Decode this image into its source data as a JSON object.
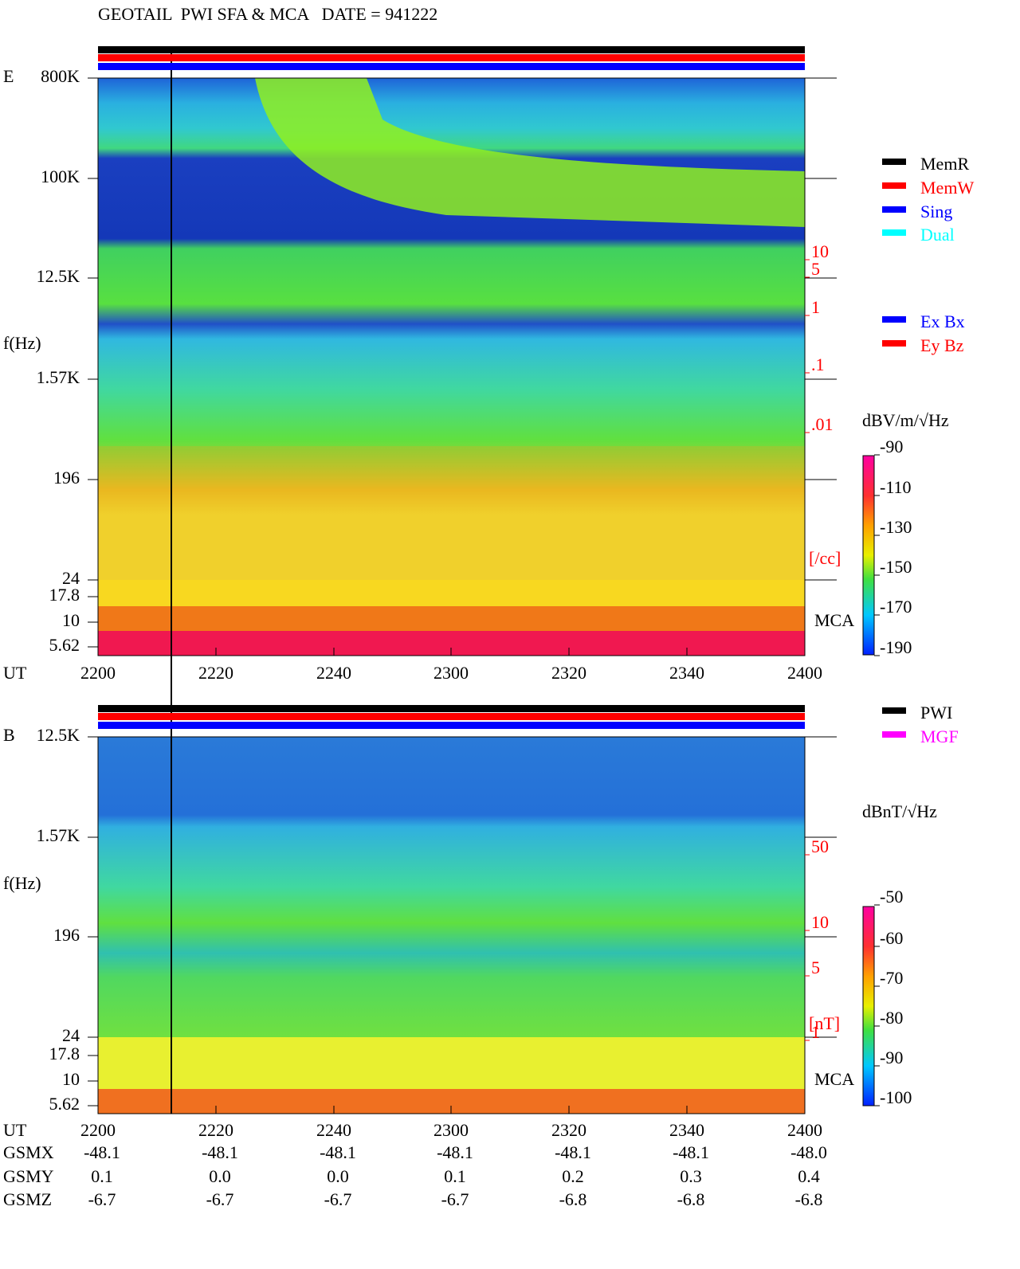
{
  "header": {
    "title": "GEOTAIL  PWI SFA & MCA   DATE = 941222"
  },
  "panels": [
    {
      "label": "E",
      "ylabel": "f(Hz)",
      "yticks": [
        "800K",
        "100K",
        "12.5K",
        "1.57K",
        "196",
        "24",
        "17.8",
        "10",
        "5.62"
      ],
      "right_ticks": [
        "10",
        "5",
        "1",
        ".1",
        ".01"
      ],
      "right_unit": "[/cc]",
      "mca": "MCA",
      "x_label": "UT",
      "xticks": [
        "2200",
        "2220",
        "2240",
        "2300",
        "2320",
        "2340",
        "2400"
      ],
      "legend": [
        {
          "name": "MemR",
          "color": "#000000"
        },
        {
          "name": "MemW",
          "color": "#ff0000"
        },
        {
          "name": "Sing",
          "color": "#0000ff"
        },
        {
          "name": "Dual",
          "color": "#00ffff"
        },
        {
          "name": "Ex Bx",
          "color": "#0000ff"
        },
        {
          "name": "Ey Bz",
          "color": "#ff0000"
        }
      ],
      "colorbar": {
        "title": "dBV/m/√Hz",
        "ticks": [
          "-90",
          "-110",
          "-130",
          "-150",
          "-170",
          "-190"
        ]
      }
    },
    {
      "label": "B",
      "ylabel": "f(Hz)",
      "yticks": [
        "12.5K",
        "1.57K",
        "196",
        "24",
        "17.8",
        "10",
        "5.62"
      ],
      "right_ticks": [
        "50",
        "10",
        "5",
        "1"
      ],
      "right_unit": "[nT]",
      "mca": "MCA",
      "x_label": "UT",
      "xticks": [
        "2200",
        "2220",
        "2240",
        "2300",
        "2320",
        "2340",
        "2400"
      ],
      "legend": [
        {
          "name": "PWI",
          "color": "#000000"
        },
        {
          "name": "MGF",
          "color": "#ff00ff"
        }
      ],
      "colorbar": {
        "title": "dBnT/√Hz",
        "ticks": [
          "-50",
          "-60",
          "-70",
          "-80",
          "-90",
          "-100"
        ]
      }
    }
  ],
  "orbit": {
    "rows": [
      {
        "label": "GSMX",
        "values": [
          "-48.1",
          "-48.1",
          "-48.1",
          "-48.1",
          "-48.1",
          "-48.1",
          "-48.0"
        ]
      },
      {
        "label": "GSMY",
        "values": [
          "0.1",
          "0.0",
          "0.0",
          "0.1",
          "0.2",
          "0.3",
          "0.4"
        ]
      },
      {
        "label": "GSMZ",
        "values": [
          "-6.7",
          "-6.7",
          "-6.7",
          "-6.7",
          "-6.8",
          "-6.8",
          "-6.8"
        ]
      }
    ]
  }
}
